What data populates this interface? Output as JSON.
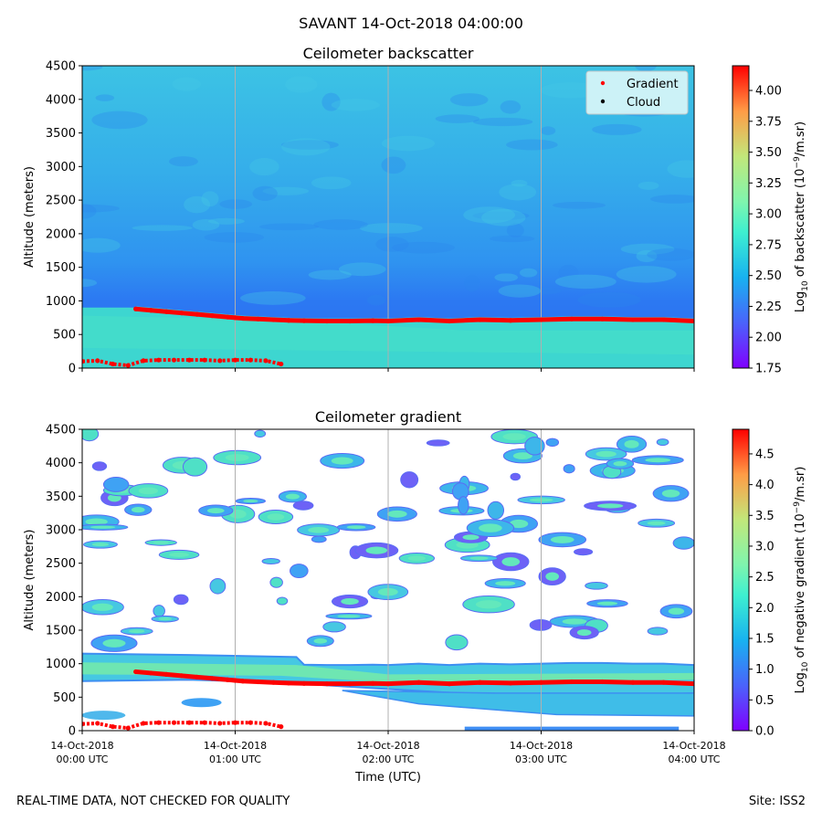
{
  "figure": {
    "suptitle": "SAVANT 14-Oct-2018 04:00:00",
    "footer_left": "REAL-TIME DATA, NOT CHECKED FOR QUALITY",
    "footer_right": "Site: ISS2"
  },
  "colors": {
    "background_high": "#45c4e6",
    "background_low": "#2d8ff0",
    "surface_layer": "#3ed8cf",
    "gradient_marker": "#ff0000",
    "cloud_marker": "#000000",
    "grid": "#b0b0b0"
  },
  "chart_data": [
    {
      "type": "heatmap",
      "title": "Ceilometer backscatter",
      "xlabel": "",
      "ylabel": "Altitude (meters)",
      "ylim": [
        0,
        4500
      ],
      "yticks": [
        "0",
        "500",
        "1000",
        "1500",
        "2000",
        "2500",
        "3000",
        "3500",
        "4000",
        "4500"
      ],
      "xlim_hours": [
        0,
        4
      ],
      "xticks_hours": [
        0,
        1,
        2,
        3,
        4
      ],
      "colorbar": {
        "label": "Log10 of backscatter (10^-9/m.sr)",
        "range": [
          1.75,
          4.2
        ],
        "ticks": [
          "1.75",
          "2.00",
          "2.25",
          "2.50",
          "2.75",
          "3.00",
          "3.25",
          "3.50",
          "3.75",
          "4.00"
        ]
      },
      "legend": {
        "position": "upper-right",
        "entries": [
          "Gradient",
          "Cloud"
        ]
      },
      "series": [
        {
          "name": "Gradient (boundary layer top)",
          "x_hours": [
            0.35,
            0.45,
            0.55,
            0.65,
            0.75,
            0.85,
            0.95,
            1.0,
            1.05,
            1.15,
            1.25,
            1.35,
            1.45,
            1.6,
            1.75,
            1.9,
            2.0,
            2.2,
            2.4,
            2.6,
            2.8,
            3.0,
            3.2,
            3.4,
            3.6,
            3.8,
            4.0
          ],
          "altitude_m": [
            880,
            860,
            840,
            820,
            800,
            780,
            760,
            750,
            740,
            730,
            720,
            710,
            705,
            700,
            700,
            705,
            700,
            720,
            700,
            720,
            710,
            720,
            730,
            730,
            720,
            720,
            700
          ]
        },
        {
          "name": "Gradient (surface layer)",
          "x_hours": [
            0.0,
            0.1,
            0.2,
            0.3,
            0.4,
            0.5,
            0.6,
            0.7,
            0.8,
            0.9,
            1.0,
            1.1,
            1.2,
            1.3
          ],
          "altitude_m": [
            100,
            110,
            60,
            40,
            110,
            120,
            120,
            120,
            120,
            110,
            120,
            120,
            110,
            60
          ]
        }
      ]
    },
    {
      "type": "heatmap",
      "title": "Ceilometer gradient",
      "xlabel": "Time (UTC)",
      "ylabel": "Altitude (meters)",
      "ylim": [
        0,
        4500
      ],
      "yticks": [
        "0",
        "500",
        "1000",
        "1500",
        "2000",
        "2500",
        "3000",
        "3500",
        "4000",
        "4500"
      ],
      "xlim_hours": [
        0,
        4
      ],
      "xticks_hours": [
        0,
        1,
        2,
        3,
        4
      ],
      "xticklabels": [
        [
          "14-Oct-2018",
          "00:00 UTC"
        ],
        [
          "14-Oct-2018",
          "01:00 UTC"
        ],
        [
          "14-Oct-2018",
          "02:00 UTC"
        ],
        [
          "14-Oct-2018",
          "03:00 UTC"
        ],
        [
          "14-Oct-2018",
          "04:00 UTC"
        ]
      ],
      "colorbar": {
        "label": "Log10 of negative gradient (10^-9/m.sr)",
        "range": [
          0.0,
          4.9
        ],
        "ticks": [
          "0.0",
          "0.5",
          "1.0",
          "1.5",
          "2.0",
          "2.5",
          "3.0",
          "3.5",
          "4.0",
          "4.5"
        ]
      },
      "series": [
        {
          "name": "Gradient (boundary layer top)",
          "x_hours": [
            0.35,
            0.45,
            0.55,
            0.65,
            0.75,
            0.85,
            0.95,
            1.0,
            1.05,
            1.15,
            1.25,
            1.35,
            1.45,
            1.6,
            1.75,
            1.9,
            2.0,
            2.2,
            2.4,
            2.6,
            2.8,
            3.0,
            3.2,
            3.4,
            3.6,
            3.8,
            4.0
          ],
          "altitude_m": [
            880,
            860,
            840,
            820,
            800,
            780,
            760,
            750,
            740,
            730,
            720,
            710,
            705,
            700,
            700,
            705,
            700,
            720,
            700,
            720,
            710,
            720,
            730,
            730,
            720,
            720,
            700
          ]
        },
        {
          "name": "Gradient (surface layer)",
          "x_hours": [
            0.0,
            0.1,
            0.2,
            0.3,
            0.4,
            0.5,
            0.6,
            0.7,
            0.8,
            0.9,
            1.0,
            1.1,
            1.2,
            1.3
          ],
          "altitude_m": [
            100,
            110,
            60,
            40,
            110,
            120,
            120,
            120,
            120,
            110,
            120,
            120,
            110,
            60
          ]
        }
      ]
    }
  ]
}
